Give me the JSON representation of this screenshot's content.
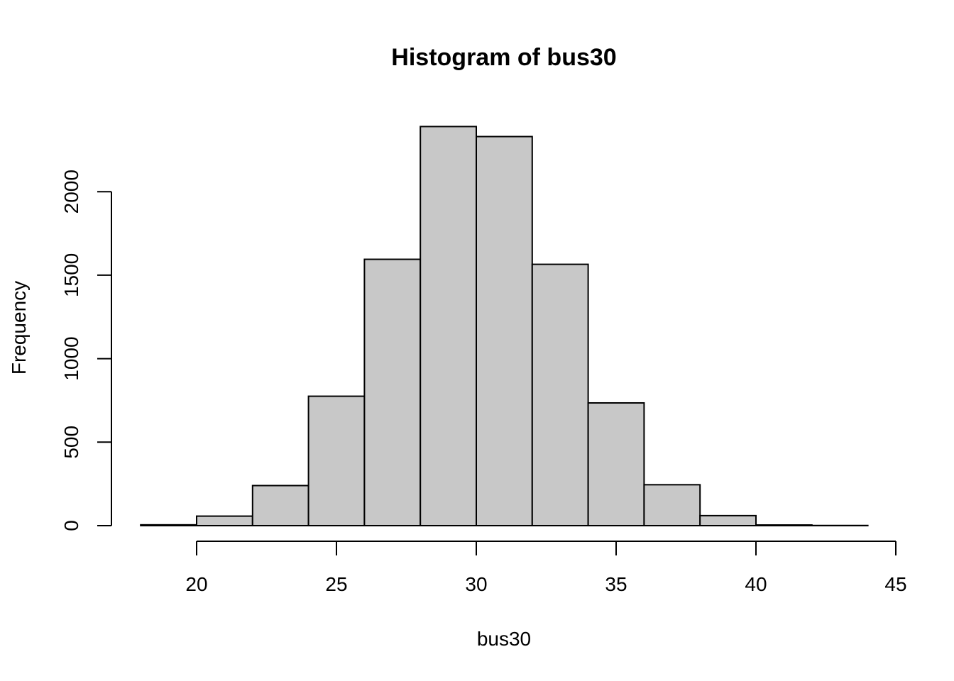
{
  "chart_data": {
    "type": "bar",
    "title": "Histogram of bus30",
    "xlabel": "bus30",
    "ylabel": "Frequency",
    "bin_edges": [
      18,
      20,
      22,
      24,
      26,
      28,
      30,
      32,
      34,
      36,
      38,
      40,
      42,
      44
    ],
    "values": [
      5,
      57,
      240,
      775,
      1595,
      2390,
      2330,
      1565,
      735,
      245,
      60,
      4,
      1
    ],
    "x_ticks": [
      "20",
      "25",
      "30",
      "35",
      "40",
      "45"
    ],
    "y_ticks": [
      "0",
      "500",
      "1000",
      "1500",
      "2000"
    ],
    "xlim": [
      18,
      45
    ],
    "ylim": [
      0,
      2000
    ],
    "bar_color": "#c8c8c8",
    "grid": false
  }
}
